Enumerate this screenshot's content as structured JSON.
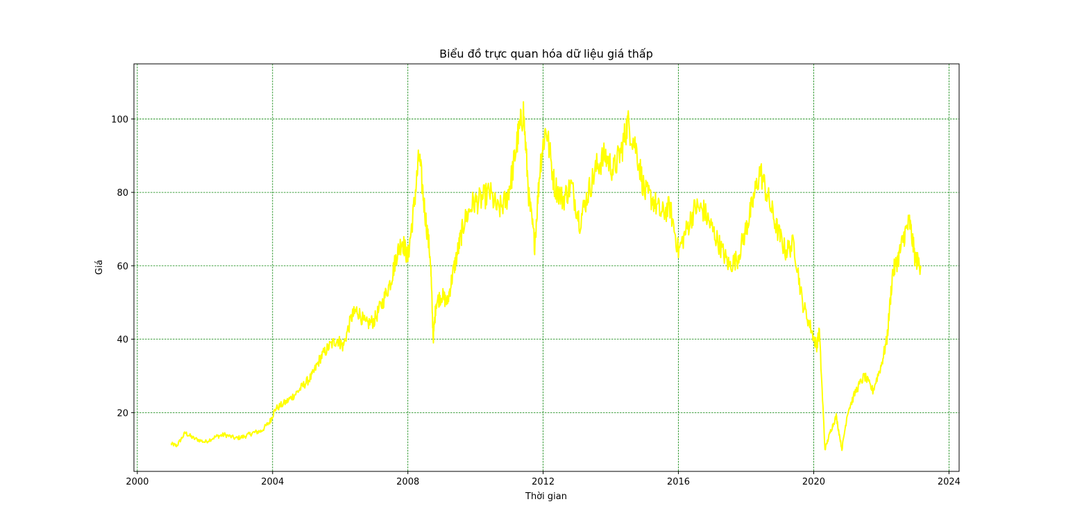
{
  "chart_data": {
    "type": "line",
    "title": "Biểu đồ trực quan hóa dữ liệu giá thấp",
    "xlabel": "Thời gian",
    "ylabel": "Giá",
    "xlim": [
      "2000",
      "2024"
    ],
    "ylim": [
      4,
      115
    ],
    "x_ticks": [
      "2000",
      "2004",
      "2008",
      "2012",
      "2016",
      "2020",
      "2024"
    ],
    "y_ticks": [
      20,
      40,
      60,
      80,
      100
    ],
    "grid": true,
    "grid_color": "#008000",
    "line_color": "#ffff00",
    "series": [
      {
        "x": [
          "2001-01",
          "2001-03",
          "2001-06",
          "2001-09",
          "2002-01",
          "2002-05",
          "2002-08",
          "2002-12",
          "2003-03",
          "2003-06",
          "2003-09",
          "2003-12",
          "2004-02",
          "2004-06",
          "2004-09",
          "2004-12",
          "2005-03",
          "2005-06",
          "2005-09",
          "2005-12",
          "2006-02",
          "2006-05",
          "2006-07",
          "2006-10",
          "2007-01",
          "2007-04",
          "2007-07",
          "2007-09",
          "2007-11",
          "2008-01",
          "2008-03",
          "2008-05",
          "2008-07",
          "2008-09",
          "2008-10",
          "2008-11",
          "2009-01",
          "2009-03",
          "2009-05",
          "2009-07",
          "2009-09",
          "2009-12",
          "2010-03",
          "2010-06",
          "2010-09",
          "2010-12",
          "2011-02",
          "2011-04",
          "2011-06",
          "2011-08",
          "2011-10",
          "2011-12",
          "2012-02",
          "2012-05",
          "2012-08",
          "2012-11",
          "2013-02",
          "2013-05",
          "2013-08",
          "2013-11",
          "2014-02",
          "2014-05",
          "2014-07",
          "2014-10",
          "2015-01",
          "2015-04",
          "2015-07",
          "2015-10",
          "2016-01",
          "2016-04",
          "2016-07",
          "2016-10",
          "2017-01",
          "2017-04",
          "2017-07",
          "2017-10",
          "2018-01",
          "2018-03",
          "2018-06",
          "2018-09",
          "2018-12",
          "2019-03",
          "2019-06",
          "2019-09",
          "2019-12",
          "2020-02",
          "2020-03",
          "2020-05",
          "2020-07",
          "2020-09",
          "2020-11",
          "2021-01",
          "2021-04",
          "2021-07",
          "2021-10",
          "2022-01",
          "2022-03",
          "2022-05",
          "2022-07",
          "2022-09",
          "2022-11",
          "2023-01",
          "2023-03"
        ],
        "values": [
          11.5,
          11.0,
          14.5,
          13.0,
          12.0,
          13.5,
          14.0,
          13.0,
          13.5,
          14.5,
          15.0,
          17.5,
          21.0,
          23.0,
          25.0,
          27.5,
          30.0,
          35.0,
          38.0,
          40.0,
          38.0,
          46.0,
          48.0,
          44.0,
          45.0,
          50.0,
          56.0,
          63.0,
          67.0,
          62.0,
          75.0,
          90.0,
          75.0,
          62.0,
          40.0,
          50.0,
          52.0,
          50.0,
          58.0,
          65.0,
          72.0,
          77.0,
          78.0,
          80.0,
          75.0,
          78.0,
          85.0,
          95.0,
          102.0,
          78.0,
          66.0,
          88.0,
          98.0,
          82.0,
          78.0,
          82.0,
          72.0,
          80.0,
          87.0,
          90.0,
          86.0,
          92.0,
          99.0,
          92.0,
          80.0,
          78.0,
          74.0,
          76.0,
          64.0,
          70.0,
          76.0,
          75.0,
          70.0,
          65.0,
          60.0,
          62.0,
          70.0,
          76.0,
          86.0,
          78.0,
          70.0,
          64.0,
          66.0,
          50.0,
          43.0,
          38.0,
          42.0,
          10.0,
          15.0,
          19.0,
          10.0,
          20.0,
          26.0,
          30.0,
          26.0,
          33.0,
          40.0,
          58.0,
          62.0,
          68.0,
          72.0,
          62.0,
          60.0
        ]
      }
    ]
  }
}
